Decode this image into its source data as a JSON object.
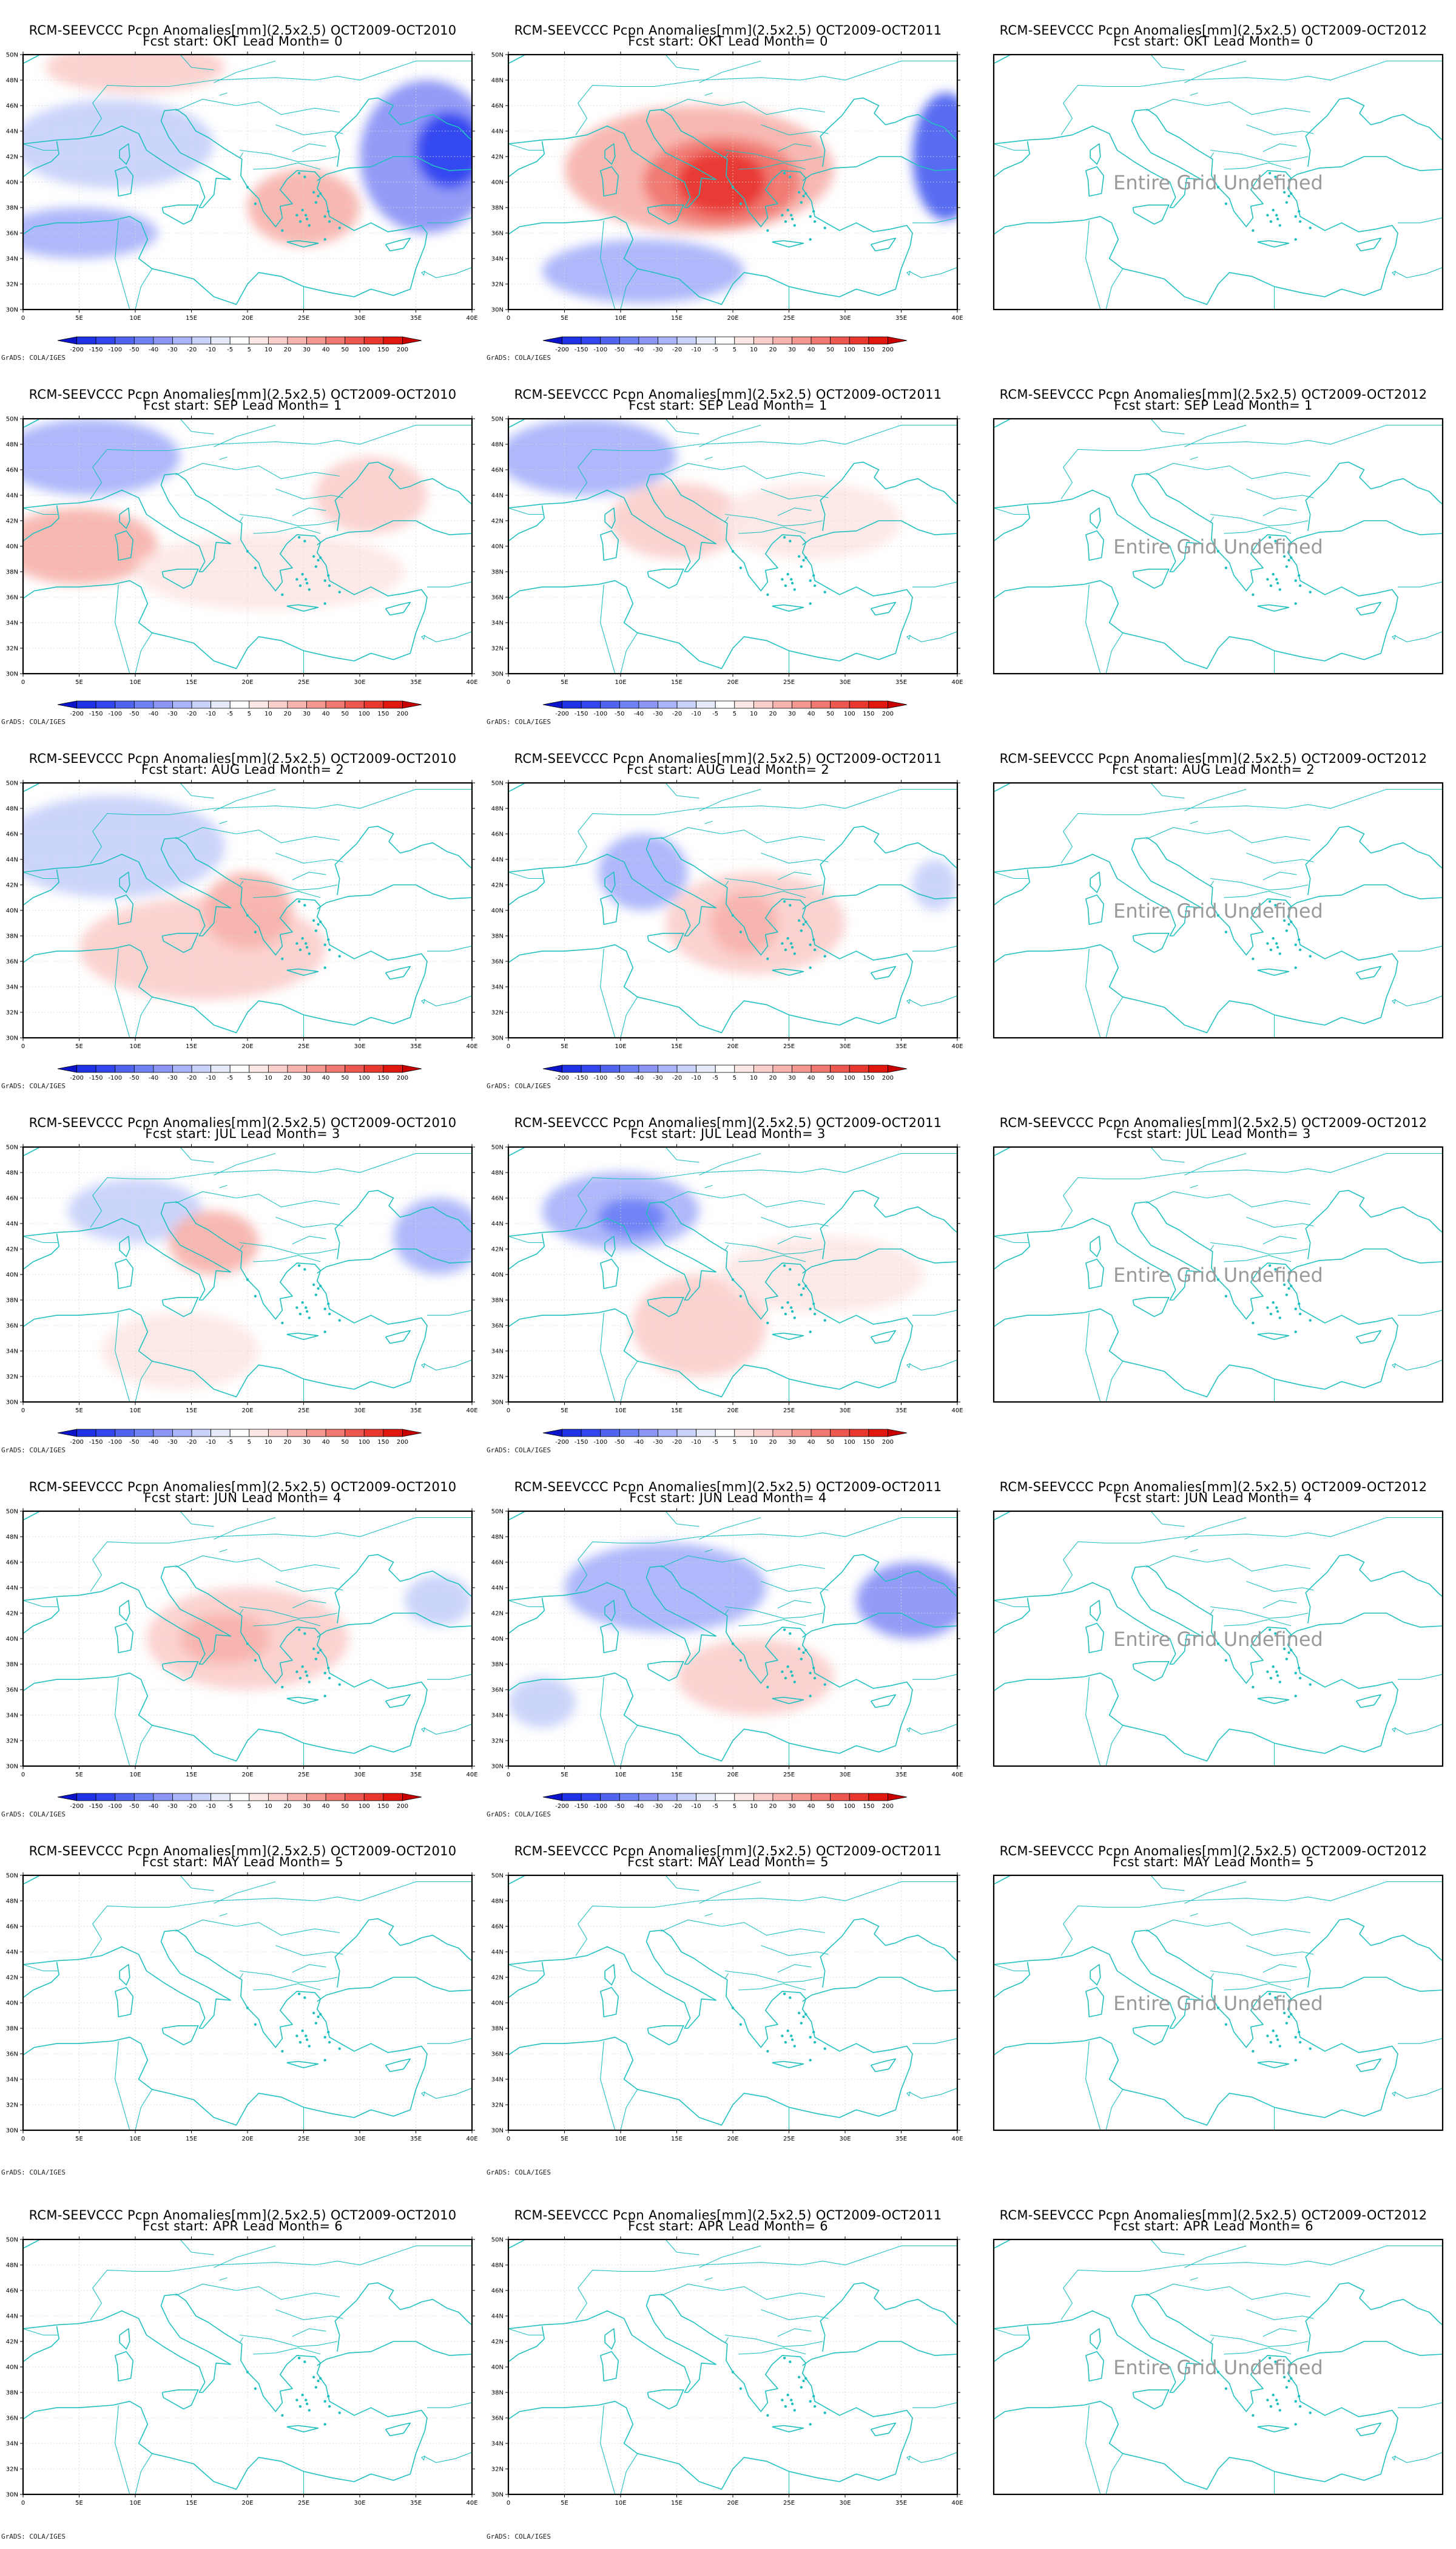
{
  "title_line1": [
    "RCM-SEEVCCC Pcpn Anomalies[mm](2.5x2.5) OCT2009-OCT2010",
    "RCM-SEEVCCC Pcpn Anomalies[mm](2.5x2.5) OCT2009-OCT2011",
    "RCM-SEEVCCC Pcpn Anomalies[mm](2.5x2.5) OCT2009-OCT2012"
  ],
  "title_line2": [
    "Fcst start: OKT  Lead Month= 0",
    "Fcst start: SEP  Lead Month= 1",
    "Fcst start: AUG  Lead Month= 2",
    "Fcst start: JUL  Lead Month= 3",
    "Fcst start: JUN  Lead Month= 4",
    "Fcst start: MAY  Lead Month= 5",
    "Fcst start: APR  Lead Month= 6"
  ],
  "undefined_text": "Entire Grid Undefined",
  "credit": "GrADS: COLA/IGES",
  "lon_ticks": [
    "0",
    "5E",
    "10E",
    "15E",
    "20E",
    "25E",
    "30E",
    "35E",
    "40E"
  ],
  "lat_ticks": [
    "30N",
    "32N",
    "34N",
    "36N",
    "38N",
    "40N",
    "42N",
    "44N",
    "46N",
    "48N",
    "50N"
  ],
  "colorbar": {
    "labels": [
      "-200",
      "-150",
      "-100",
      "-50",
      "-40",
      "-30",
      "-20",
      "-10",
      "-5",
      "5",
      "10",
      "20",
      "30",
      "40",
      "50",
      "100",
      "150",
      "200"
    ],
    "colors": [
      "#0a14c8",
      "#1e32e6",
      "#3246f0",
      "#5064f0",
      "#6e82f5",
      "#8c96f5",
      "#aab4fa",
      "#c8d2fa",
      "#e6ebfc",
      "#ffffff",
      "#fde8e6",
      "#fbd0cc",
      "#f8b4ae",
      "#f59890",
      "#f07870",
      "#ec5850",
      "#e83830",
      "#e01810",
      "#c80000"
    ]
  },
  "colors": {
    "coast": "#20c0c0",
    "frame": "#000000",
    "grid": "#d8d8d8"
  },
  "maps": [
    {
      "row": 0,
      "col": 0,
      "defined": true,
      "blobs": [
        {
          "lon": 8,
          "lat": 43,
          "rx": 9,
          "ry": 3.5,
          "c": "#c8d2fa"
        },
        {
          "lon": 36,
          "lat": 42,
          "rx": 6,
          "ry": 6,
          "c": "#8c96f5"
        },
        {
          "lon": 38,
          "lat": 42.5,
          "rx": 3,
          "ry": 3,
          "c": "#3246f0"
        },
        {
          "lon": 5,
          "lat": 36,
          "rx": 7,
          "ry": 2,
          "c": "#aab4fa"
        },
        {
          "lon": 25,
          "lat": 38,
          "rx": 5,
          "ry": 3,
          "c": "#f8b4ae"
        },
        {
          "lon": 10,
          "lat": 49,
          "rx": 8,
          "ry": 2,
          "c": "#fbd0cc"
        }
      ]
    },
    {
      "row": 0,
      "col": 1,
      "defined": true,
      "blobs": [
        {
          "lon": 17,
          "lat": 41,
          "rx": 12,
          "ry": 5,
          "c": "#f8b4ae"
        },
        {
          "lon": 19,
          "lat": 40,
          "rx": 7,
          "ry": 3.5,
          "c": "#f07870"
        },
        {
          "lon": 19,
          "lat": 40,
          "rx": 4,
          "ry": 2.5,
          "c": "#e83830"
        },
        {
          "lon": 39,
          "lat": 42,
          "rx": 3,
          "ry": 5,
          "c": "#5064f0"
        },
        {
          "lon": 12,
          "lat": 33,
          "rx": 9,
          "ry": 2.5,
          "c": "#aab4fa"
        }
      ]
    },
    {
      "row": 0,
      "col": 2,
      "defined": false
    },
    {
      "row": 1,
      "col": 0,
      "defined": true,
      "blobs": [
        {
          "lon": 6,
          "lat": 47,
          "rx": 8,
          "ry": 3,
          "c": "#aab4fa"
        },
        {
          "lon": 5,
          "lat": 40,
          "rx": 7,
          "ry": 3,
          "c": "#f8b4ae"
        },
        {
          "lon": 31,
          "lat": 44,
          "rx": 5,
          "ry": 3,
          "c": "#fbd0cc"
        },
        {
          "lon": 22,
          "lat": 38,
          "rx": 12,
          "ry": 3,
          "c": "#fde8e6"
        }
      ]
    },
    {
      "row": 1,
      "col": 1,
      "defined": true,
      "blobs": [
        {
          "lon": 7,
          "lat": 47,
          "rx": 8,
          "ry": 3,
          "c": "#aab4fa"
        },
        {
          "lon": 15,
          "lat": 42,
          "rx": 6,
          "ry": 3,
          "c": "#fbd0cc"
        },
        {
          "lon": 27,
          "lat": 42,
          "rx": 8,
          "ry": 3,
          "c": "#fde8e6"
        }
      ]
    },
    {
      "row": 1,
      "col": 2,
      "defined": false
    },
    {
      "row": 2,
      "col": 0,
      "defined": true,
      "blobs": [
        {
          "lon": 8,
          "lat": 45,
          "rx": 10,
          "ry": 4,
          "c": "#c8d2fa"
        },
        {
          "lon": 16,
          "lat": 37,
          "rx": 11,
          "ry": 4,
          "c": "#fbd0cc"
        },
        {
          "lon": 20,
          "lat": 40,
          "rx": 4,
          "ry": 3,
          "c": "#f8b4ae"
        }
      ]
    },
    {
      "row": 2,
      "col": 1,
      "defined": true,
      "blobs": [
        {
          "lon": 12,
          "lat": 43,
          "rx": 4,
          "ry": 3,
          "c": "#aab4fa"
        },
        {
          "lon": 22,
          "lat": 39,
          "rx": 8,
          "ry": 4,
          "c": "#fbd0cc"
        },
        {
          "lon": 21,
          "lat": 39,
          "rx": 3,
          "ry": 2.5,
          "c": "#f8b4ae"
        },
        {
          "lon": 38,
          "lat": 42,
          "rx": 2,
          "ry": 2,
          "c": "#c8d2fa"
        }
      ]
    },
    {
      "row": 2,
      "col": 2,
      "defined": false
    },
    {
      "row": 3,
      "col": 0,
      "defined": true,
      "blobs": [
        {
          "lon": 10,
          "lat": 45,
          "rx": 6,
          "ry": 2.5,
          "c": "#c8d2fa"
        },
        {
          "lon": 17,
          "lat": 42.5,
          "rx": 4,
          "ry": 2.5,
          "c": "#f8b4ae"
        },
        {
          "lon": 37,
          "lat": 43,
          "rx": 4,
          "ry": 3,
          "c": "#aab4fa"
        },
        {
          "lon": 14,
          "lat": 34,
          "rx": 7,
          "ry": 3,
          "c": "#fde8e6"
        }
      ]
    },
    {
      "row": 3,
      "col": 1,
      "defined": true,
      "blobs": [
        {
          "lon": 10,
          "lat": 45,
          "rx": 7,
          "ry": 3,
          "c": "#aab4fa"
        },
        {
          "lon": 11,
          "lat": 44.5,
          "rx": 3,
          "ry": 1.5,
          "c": "#6e82f5"
        },
        {
          "lon": 17,
          "lat": 36,
          "rx": 6,
          "ry": 4,
          "c": "#fbd0cc"
        },
        {
          "lon": 28,
          "lat": 40,
          "rx": 9,
          "ry": 3,
          "c": "#fde8e6"
        }
      ]
    },
    {
      "row": 3,
      "col": 2,
      "defined": false
    },
    {
      "row": 4,
      "col": 0,
      "defined": true,
      "blobs": [
        {
          "lon": 20,
          "lat": 40,
          "rx": 9,
          "ry": 4,
          "c": "#fbd0cc"
        },
        {
          "lon": 18,
          "lat": 40,
          "rx": 4,
          "ry": 2,
          "c": "#f8b4ae"
        },
        {
          "lon": 37,
          "lat": 43,
          "rx": 3,
          "ry": 2,
          "c": "#c8d2fa"
        }
      ]
    },
    {
      "row": 4,
      "col": 1,
      "defined": true,
      "blobs": [
        {
          "lon": 14,
          "lat": 44,
          "rx": 9,
          "ry": 3.5,
          "c": "#aab4fa"
        },
        {
          "lon": 36,
          "lat": 43,
          "rx": 5,
          "ry": 3,
          "c": "#8c96f5"
        },
        {
          "lon": 22,
          "lat": 37,
          "rx": 7,
          "ry": 3,
          "c": "#fbd0cc"
        },
        {
          "lon": 3,
          "lat": 35,
          "rx": 3,
          "ry": 2,
          "c": "#c8d2fa"
        }
      ]
    },
    {
      "row": 4,
      "col": 2,
      "defined": false
    },
    {
      "row": 5,
      "col": 0,
      "defined": true,
      "blobs": []
    },
    {
      "row": 5,
      "col": 1,
      "defined": true,
      "blobs": []
    },
    {
      "row": 5,
      "col": 2,
      "defined": false
    },
    {
      "row": 6,
      "col": 0,
      "defined": true,
      "blobs": []
    },
    {
      "row": 6,
      "col": 1,
      "defined": true,
      "blobs": []
    },
    {
      "row": 6,
      "col": 2,
      "defined": false
    }
  ]
}
